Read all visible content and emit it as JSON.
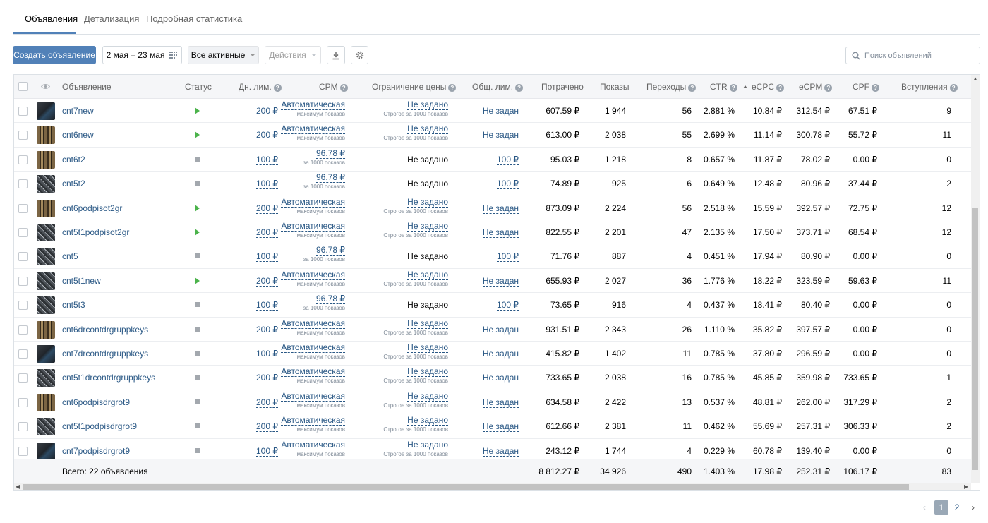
{
  "tabs": [
    {
      "label": "Объявления",
      "active": true
    },
    {
      "label": "Детализация",
      "active": false
    },
    {
      "label": "Подробная статистика",
      "active": false
    }
  ],
  "toolbar": {
    "create_label": "Создать объявление",
    "date_range": "2 мая – 23 мая",
    "filter_label": "Все активные",
    "actions_label": "Действия",
    "search_placeholder": "Поиск объявлений"
  },
  "columns": {
    "ad": "Объявление",
    "status": "Статус",
    "day_limit": "Дн. лим.",
    "cpm": "CPM",
    "price_limit": "Ограничение цены",
    "total_limit": "Общ. лим.",
    "spent": "Потрачено",
    "impressions": "Показы",
    "clicks": "Переходы",
    "ctr": "CTR",
    "ecpc": "eCPC",
    "ecpm": "eCPM",
    "cpf": "CPF",
    "joins": "Вступления"
  },
  "rows": [
    {
      "name": "cnt7new",
      "thumb": "dark",
      "status": "active",
      "day_limit": "200 ₽",
      "cpm": "Автоматическая",
      "cpm_sub": "максимум показов",
      "price_limit": "Не задано",
      "price_sub": "Строгое за 1000 показов",
      "price_link": true,
      "total_limit": "Не задан",
      "spent": "607.59 ₽",
      "impressions": "1 944",
      "clicks": "56",
      "ctr": "2.881 %",
      "ecpc": "10.84 ₽",
      "ecpm": "312.54 ₽",
      "cpf": "67.51 ₽",
      "joins": "9"
    },
    {
      "name": "cnt6new",
      "thumb": "brown",
      "status": "active",
      "day_limit": "200 ₽",
      "cpm": "Автоматическая",
      "cpm_sub": "максимум показов",
      "price_limit": "Не задано",
      "price_sub": "Строгое за 1000 показов",
      "price_link": true,
      "total_limit": "Не задан",
      "spent": "613.00 ₽",
      "impressions": "2 038",
      "clicks": "55",
      "ctr": "2.699 %",
      "ecpc": "11.14 ₽",
      "ecpm": "300.78 ₽",
      "cpf": "55.72 ₽",
      "joins": "11"
    },
    {
      "name": "cnt6t2",
      "thumb": "brown",
      "status": "stopped",
      "day_limit": "100 ₽",
      "cpm": "96.78 ₽",
      "cpm_sub": "за 1000 показов",
      "price_limit": "Не задано",
      "price_sub": "",
      "price_link": false,
      "total_limit": "100 ₽",
      "spent": "95.03 ₽",
      "impressions": "1 218",
      "clicks": "8",
      "ctr": "0.657 %",
      "ecpc": "11.87 ₽",
      "ecpm": "78.02 ₽",
      "cpf": "0.00 ₽",
      "joins": "0"
    },
    {
      "name": "cnt5t2",
      "thumb": "mesh",
      "status": "stopped",
      "day_limit": "100 ₽",
      "cpm": "96.78 ₽",
      "cpm_sub": "за 1000 показов",
      "price_limit": "Не задано",
      "price_sub": "",
      "price_link": false,
      "total_limit": "100 ₽",
      "spent": "74.89 ₽",
      "impressions": "925",
      "clicks": "6",
      "ctr": "0.649 %",
      "ecpc": "12.48 ₽",
      "ecpm": "80.96 ₽",
      "cpf": "37.44 ₽",
      "joins": "2"
    },
    {
      "name": "cnt6podpisot2gr",
      "thumb": "brown",
      "status": "active",
      "day_limit": "200 ₽",
      "cpm": "Автоматическая",
      "cpm_sub": "максимум показов",
      "price_limit": "Не задано",
      "price_sub": "Строгое за 1000 показов",
      "price_link": true,
      "total_limit": "Не задан",
      "spent": "873.09 ₽",
      "impressions": "2 224",
      "clicks": "56",
      "ctr": "2.518 %",
      "ecpc": "15.59 ₽",
      "ecpm": "392.57 ₽",
      "cpf": "72.75 ₽",
      "joins": "12"
    },
    {
      "name": "cnt5t1podpisot2gr",
      "thumb": "mesh",
      "status": "active",
      "day_limit": "200 ₽",
      "cpm": "Автоматическая",
      "cpm_sub": "максимум показов",
      "price_limit": "Не задано",
      "price_sub": "Строгое за 1000 показов",
      "price_link": true,
      "total_limit": "Не задан",
      "spent": "822.55 ₽",
      "impressions": "2 201",
      "clicks": "47",
      "ctr": "2.135 %",
      "ecpc": "17.50 ₽",
      "ecpm": "373.71 ₽",
      "cpf": "68.54 ₽",
      "joins": "12"
    },
    {
      "name": "cnt5",
      "thumb": "mesh",
      "status": "stopped",
      "day_limit": "100 ₽",
      "cpm": "96.78 ₽",
      "cpm_sub": "за 1000 показов",
      "price_limit": "Не задано",
      "price_sub": "",
      "price_link": false,
      "total_limit": "100 ₽",
      "spent": "71.76 ₽",
      "impressions": "887",
      "clicks": "4",
      "ctr": "0.451 %",
      "ecpc": "17.94 ₽",
      "ecpm": "80.90 ₽",
      "cpf": "0.00 ₽",
      "joins": "0"
    },
    {
      "name": "cnt5t1new",
      "thumb": "mesh",
      "status": "active",
      "day_limit": "200 ₽",
      "cpm": "Автоматическая",
      "cpm_sub": "максимум показов",
      "price_limit": "Не задано",
      "price_sub": "Строгое за 1000 показов",
      "price_link": true,
      "total_limit": "Не задан",
      "spent": "655.93 ₽",
      "impressions": "2 027",
      "clicks": "36",
      "ctr": "1.776 %",
      "ecpc": "18.22 ₽",
      "ecpm": "323.59 ₽",
      "cpf": "59.63 ₽",
      "joins": "11"
    },
    {
      "name": "cnt5t3",
      "thumb": "mesh",
      "status": "stopped",
      "day_limit": "100 ₽",
      "cpm": "96.78 ₽",
      "cpm_sub": "за 1000 показов",
      "price_limit": "Не задано",
      "price_sub": "",
      "price_link": false,
      "total_limit": "100 ₽",
      "spent": "73.65 ₽",
      "impressions": "916",
      "clicks": "4",
      "ctr": "0.437 %",
      "ecpc": "18.41 ₽",
      "ecpm": "80.40 ₽",
      "cpf": "0.00 ₽",
      "joins": "0"
    },
    {
      "name": "cnt6drcontdrgruppkeys",
      "thumb": "brown",
      "status": "stopped",
      "day_limit": "200 ₽",
      "cpm": "Автоматическая",
      "cpm_sub": "максимум показов",
      "price_limit": "Не задано",
      "price_sub": "Строгое за 1000 показов",
      "price_link": true,
      "total_limit": "Не задан",
      "spent": "931.51 ₽",
      "impressions": "2 343",
      "clicks": "26",
      "ctr": "1.110 %",
      "ecpc": "35.82 ₽",
      "ecpm": "397.57 ₽",
      "cpf": "0.00 ₽",
      "joins": "0"
    },
    {
      "name": "cnt7drcontdrgruppkeys",
      "thumb": "dark",
      "status": "stopped",
      "day_limit": "100 ₽",
      "cpm": "Автоматическая",
      "cpm_sub": "максимум показов",
      "price_limit": "Не задано",
      "price_sub": "Строгое за 1000 показов",
      "price_link": true,
      "total_limit": "Не задан",
      "spent": "415.82 ₽",
      "impressions": "1 402",
      "clicks": "11",
      "ctr": "0.785 %",
      "ecpc": "37.80 ₽",
      "ecpm": "296.59 ₽",
      "cpf": "0.00 ₽",
      "joins": "0"
    },
    {
      "name": "cnt5t1drcontdrgruppkeys",
      "thumb": "mesh",
      "status": "stopped",
      "day_limit": "200 ₽",
      "cpm": "Автоматическая",
      "cpm_sub": "максимум показов",
      "price_limit": "Не задано",
      "price_sub": "Строгое за 1000 показов",
      "price_link": true,
      "total_limit": "Не задан",
      "spent": "733.65 ₽",
      "impressions": "2 038",
      "clicks": "16",
      "ctr": "0.785 %",
      "ecpc": "45.85 ₽",
      "ecpm": "359.98 ₽",
      "cpf": "733.65 ₽",
      "joins": "1"
    },
    {
      "name": "cnt6podpisdrgrot9",
      "thumb": "brown",
      "status": "stopped",
      "day_limit": "200 ₽",
      "cpm": "Автоматическая",
      "cpm_sub": "максимум показов",
      "price_limit": "Не задано",
      "price_sub": "Строгое за 1000 показов",
      "price_link": true,
      "total_limit": "Не задан",
      "spent": "634.58 ₽",
      "impressions": "2 422",
      "clicks": "13",
      "ctr": "0.537 %",
      "ecpc": "48.81 ₽",
      "ecpm": "262.00 ₽",
      "cpf": "317.29 ₽",
      "joins": "2"
    },
    {
      "name": "cnt5t1podpisdrgrot9",
      "thumb": "mesh",
      "status": "stopped",
      "day_limit": "200 ₽",
      "cpm": "Автоматическая",
      "cpm_sub": "максимум показов",
      "price_limit": "Не задано",
      "price_sub": "Строгое за 1000 показов",
      "price_link": true,
      "total_limit": "Не задан",
      "spent": "612.66 ₽",
      "impressions": "2 381",
      "clicks": "11",
      "ctr": "0.462 %",
      "ecpc": "55.69 ₽",
      "ecpm": "257.31 ₽",
      "cpf": "306.33 ₽",
      "joins": "2"
    },
    {
      "name": "cnt7podpisdrgrot9",
      "thumb": "dark",
      "status": "stopped",
      "day_limit": "100 ₽",
      "cpm": "Автоматическая",
      "cpm_sub": "максимум показов",
      "price_limit": "Не задано",
      "price_sub": "Строгое за 1000 показов",
      "price_link": true,
      "total_limit": "Не задан",
      "spent": "243.12 ₽",
      "impressions": "1 744",
      "clicks": "4",
      "ctr": "0.229 %",
      "ecpc": "60.78 ₽",
      "ecpm": "139.40 ₽",
      "cpf": "0.00 ₽",
      "joins": "0"
    }
  ],
  "totals": {
    "label": "Всего: 22 объявления",
    "spent": "8 812.27 ₽",
    "impressions": "34 926",
    "clicks": "490",
    "ctr": "1.403 %",
    "ecpc": "17.98 ₽",
    "ecpm": "252.31 ₽",
    "cpf": "106.17 ₽",
    "joins": "83"
  },
  "pagination": {
    "pages": [
      "1",
      "2"
    ],
    "current": "1"
  },
  "colors": {
    "accent": "#5181b8",
    "link": "#2a5885",
    "status_active": "#4bb34b",
    "status_stopped": "#a3a8ae"
  },
  "icons": {
    "calendar": "grid-calendar-icon",
    "download": "download-icon",
    "settings": "gear-icon",
    "search": "search-icon",
    "visibility": "eye-icon"
  }
}
